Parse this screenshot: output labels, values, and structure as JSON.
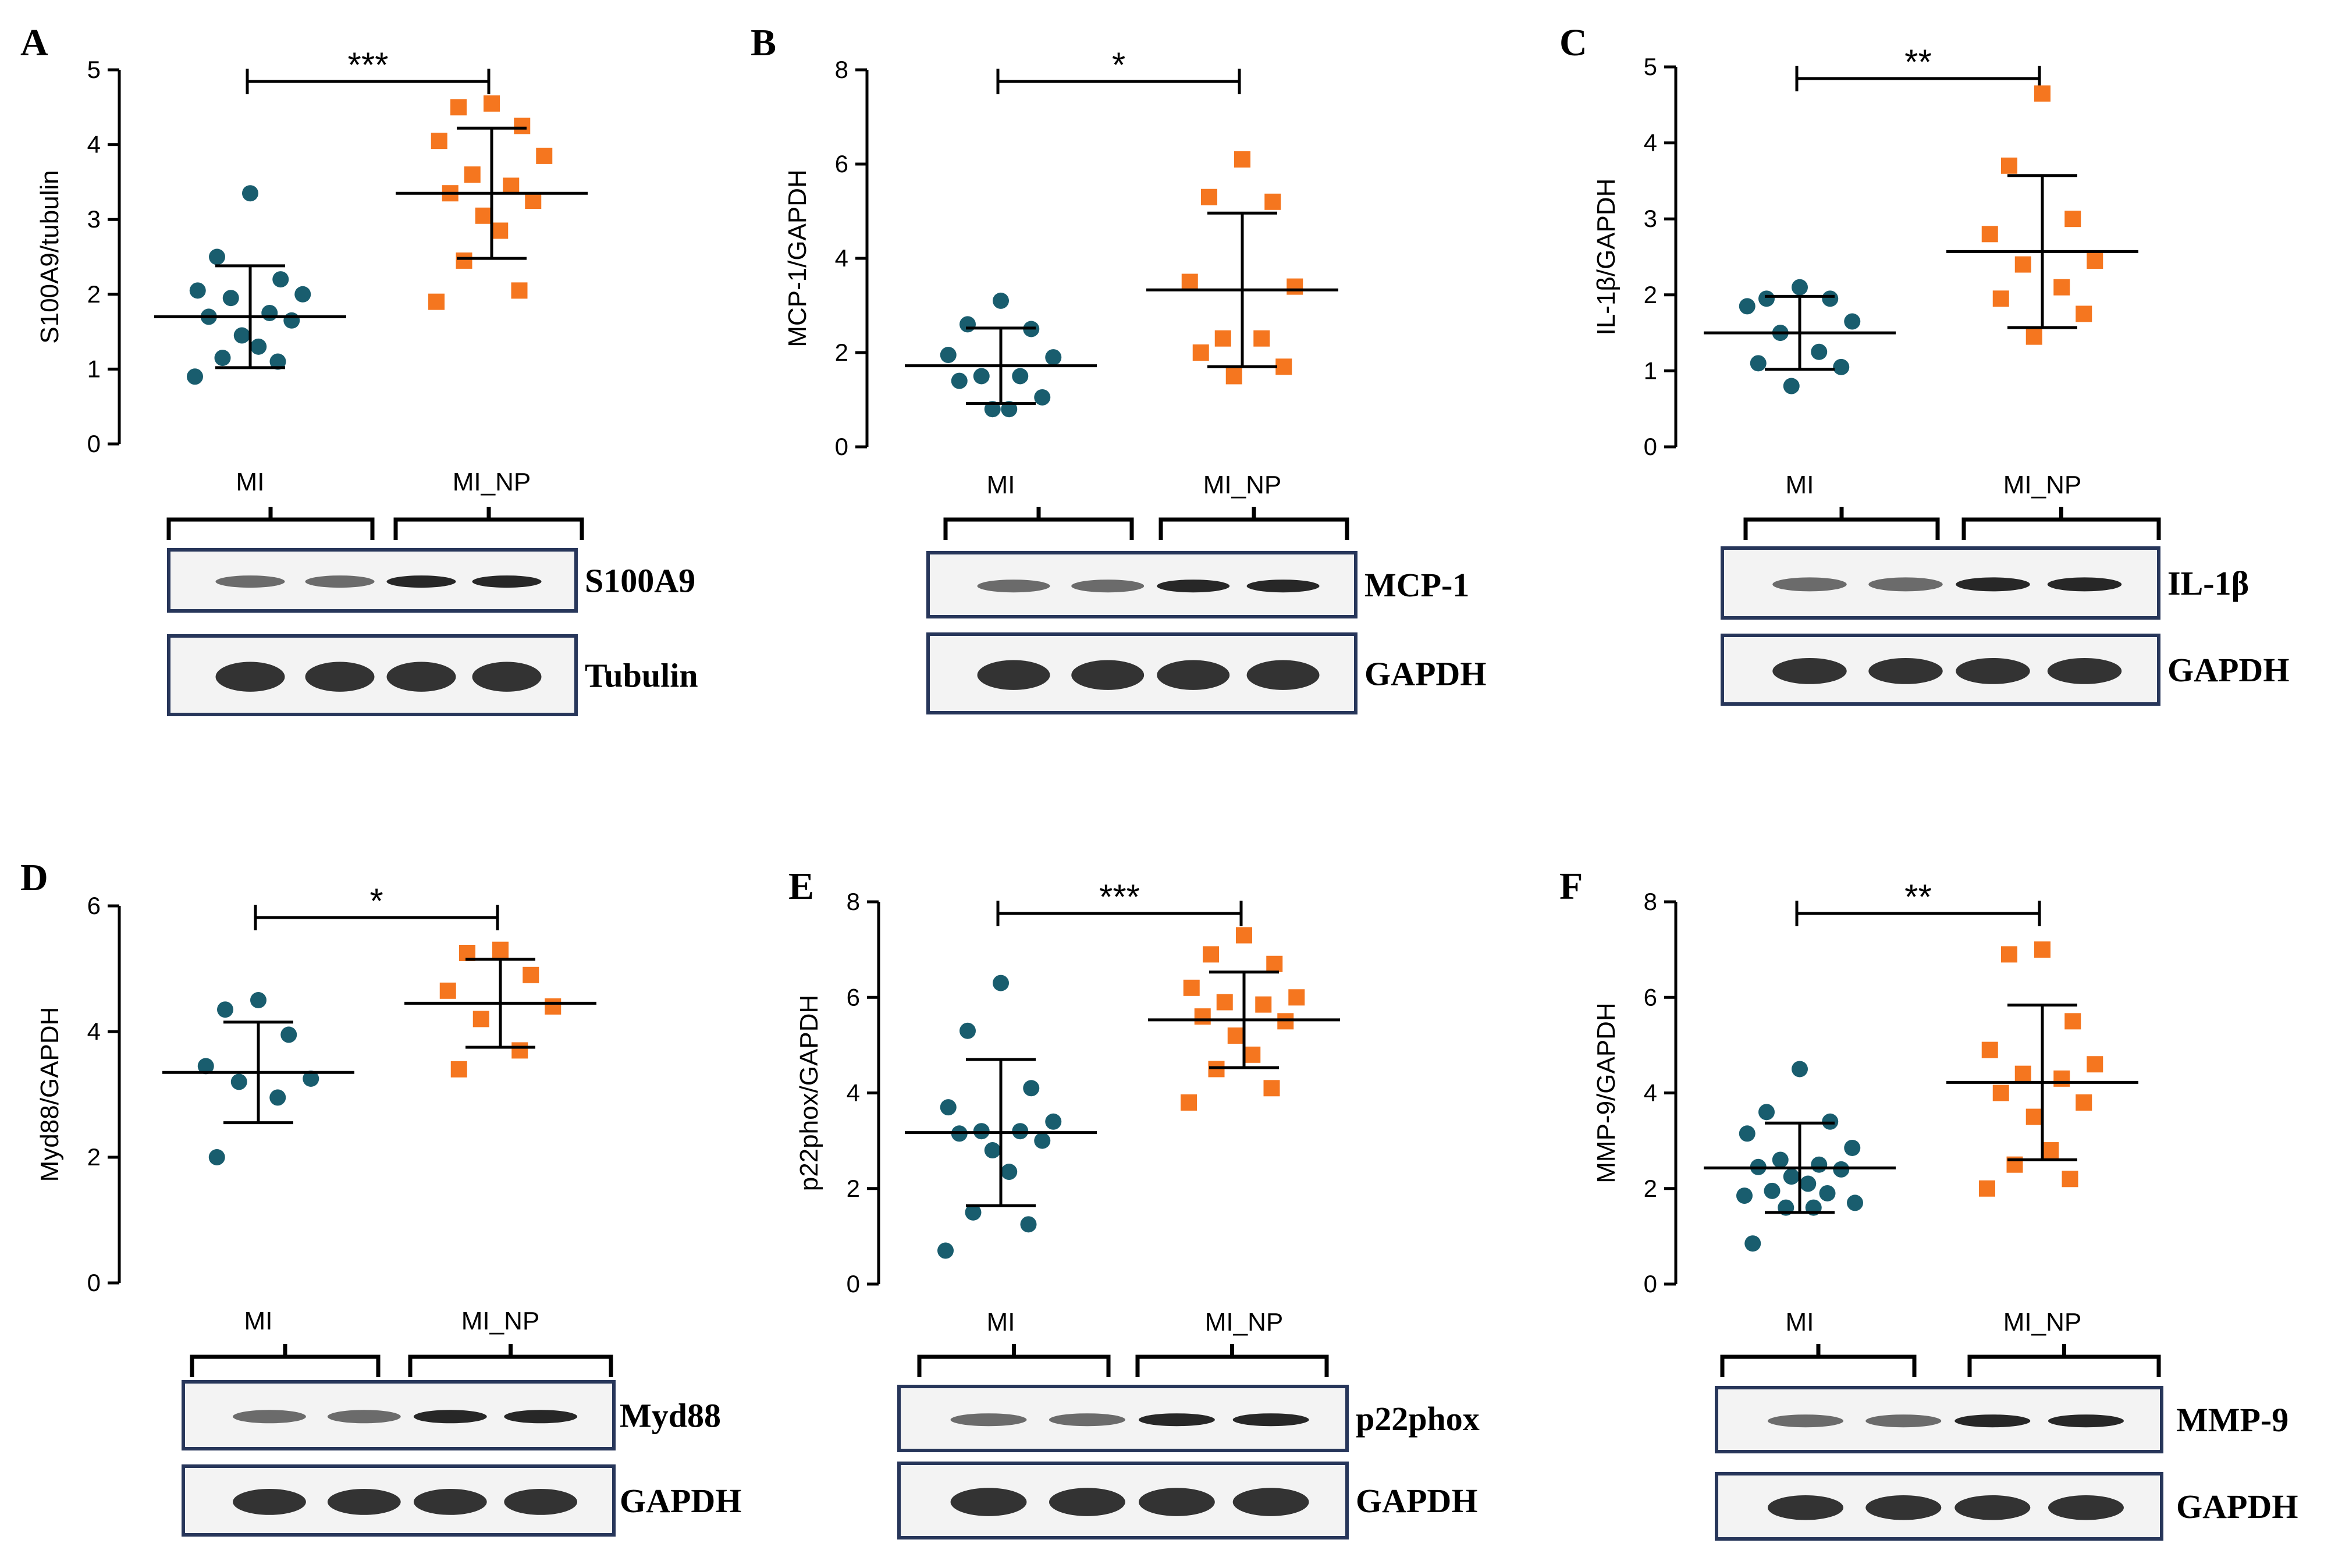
{
  "colors": {
    "mi": "#195d6e",
    "mi_np": "#f5761f",
    "axis": "#000000",
    "blot_frame": "#27365a"
  },
  "chart_data": [
    {
      "type": "scatter",
      "panel_label": "A",
      "ylabel": "S100A9/tubulin",
      "ylim": [
        0,
        5
      ],
      "yticks": [
        "0",
        "1",
        "2",
        "3",
        "4",
        "5"
      ],
      "categories": [
        "MI",
        "MI_NP"
      ],
      "significance": "***",
      "series": [
        {
          "name": "MI",
          "marker": "circle",
          "values": [
            3.35,
            2.5,
            2.2,
            2.05,
            2.0,
            1.95,
            1.75,
            1.7,
            1.65,
            1.45,
            1.3,
            1.15,
            1.1,
            0.9
          ],
          "mean": 1.7,
          "sd_low": 1.02,
          "sd_high": 2.38
        },
        {
          "name": "MI_NP",
          "marker": "square",
          "values": [
            4.55,
            4.5,
            4.25,
            4.05,
            3.85,
            3.6,
            3.45,
            3.35,
            3.25,
            3.05,
            2.85,
            2.45,
            2.05,
            1.9
          ],
          "mean": 3.35,
          "sd_low": 2.48,
          "sd_high": 4.22
        }
      ],
      "blot": {
        "target_label": "S100A9",
        "control_label": "Tubulin"
      }
    },
    {
      "type": "scatter",
      "panel_label": "B",
      "ylabel": "MCP-1/GAPDH",
      "ylim": [
        0,
        8
      ],
      "yticks": [
        "0",
        "2",
        "4",
        "6",
        "8"
      ],
      "categories": [
        "MI",
        "MI_NP"
      ],
      "significance": "*",
      "series": [
        {
          "name": "MI",
          "marker": "circle",
          "values": [
            3.1,
            2.6,
            2.5,
            1.95,
            1.9,
            1.5,
            1.5,
            1.4,
            1.05,
            0.8,
            0.8
          ],
          "mean": 1.72,
          "sd_low": 0.92,
          "sd_high": 2.52
        },
        {
          "name": "MI_NP",
          "marker": "square",
          "values": [
            6.1,
            5.3,
            5.2,
            3.5,
            3.4,
            2.3,
            2.3,
            2.0,
            1.7,
            1.5
          ],
          "mean": 3.33,
          "sd_low": 1.7,
          "sd_high": 4.96
        }
      ],
      "blot": {
        "target_label": "MCP-1",
        "control_label": "GAPDH"
      }
    },
    {
      "type": "scatter",
      "panel_label": "C",
      "ylabel": "IL-1β/GAPDH",
      "ylim": [
        0,
        5
      ],
      "yticks": [
        "0",
        "1",
        "2",
        "3",
        "4",
        "5"
      ],
      "categories": [
        "MI",
        "MI_NP"
      ],
      "significance": "**",
      "series": [
        {
          "name": "MI",
          "marker": "circle",
          "values": [
            2.1,
            1.95,
            1.95,
            1.85,
            1.65,
            1.5,
            1.25,
            1.1,
            1.05,
            0.8
          ],
          "mean": 1.5,
          "sd_low": 1.02,
          "sd_high": 1.98
        },
        {
          "name": "MI_NP",
          "marker": "square",
          "values": [
            4.65,
            3.7,
            3.0,
            2.8,
            2.45,
            2.4,
            2.1,
            1.95,
            1.75,
            1.45
          ],
          "mean": 2.57,
          "sd_low": 1.57,
          "sd_high": 3.57
        }
      ],
      "blot": {
        "target_label": "IL-1β",
        "control_label": "GAPDH"
      }
    },
    {
      "type": "scatter",
      "panel_label": "D",
      "ylabel": "Myd88/GAPDH",
      "ylim": [
        0,
        6
      ],
      "yticks": [
        "0",
        "2",
        "4",
        "6"
      ],
      "categories": [
        "MI",
        "MI_NP"
      ],
      "significance": "*",
      "series": [
        {
          "name": "MI",
          "marker": "circle",
          "values": [
            4.5,
            4.35,
            3.95,
            3.45,
            3.25,
            3.2,
            2.95,
            2.0
          ],
          "mean": 3.35,
          "sd_low": 2.55,
          "sd_high": 4.15
        },
        {
          "name": "MI_NP",
          "marker": "square",
          "values": [
            5.3,
            5.25,
            4.9,
            4.65,
            4.4,
            4.2,
            3.7,
            3.4
          ],
          "mean": 4.45,
          "sd_low": 3.75,
          "sd_high": 5.15
        }
      ],
      "blot": {
        "target_label": "Myd88",
        "control_label": "GAPDH"
      }
    },
    {
      "type": "scatter",
      "panel_label": "E",
      "ylabel": "p22phox/GAPDH",
      "ylim": [
        0,
        8
      ],
      "yticks": [
        "0",
        "2",
        "4",
        "6",
        "8"
      ],
      "categories": [
        "MI",
        "MI_NP"
      ],
      "significance": "***",
      "series": [
        {
          "name": "MI",
          "marker": "circle",
          "values": [
            6.3,
            5.3,
            4.1,
            3.7,
            3.4,
            3.2,
            3.2,
            3.15,
            3.0,
            2.8,
            2.35,
            1.5,
            1.25,
            0.7
          ],
          "mean": 3.17,
          "sd_low": 1.64,
          "sd_high": 4.7
        },
        {
          "name": "MI_NP",
          "marker": "square",
          "values": [
            7.3,
            6.9,
            6.7,
            6.2,
            6.0,
            5.9,
            5.85,
            5.6,
            5.5,
            5.2,
            4.8,
            4.5,
            4.1,
            3.8
          ],
          "mean": 5.53,
          "sd_low": 4.53,
          "sd_high": 6.53
        }
      ],
      "blot": {
        "target_label": "p22phox",
        "control_label": "GAPDH"
      }
    },
    {
      "type": "scatter",
      "panel_label": "F",
      "ylabel": "MMP-9/GAPDH",
      "ylim": [
        0,
        8
      ],
      "yticks": [
        "0",
        "2",
        "4",
        "6",
        "8"
      ],
      "categories": [
        "MI",
        "MI_NP"
      ],
      "significance": "**",
      "series": [
        {
          "name": "MI",
          "marker": "circle",
          "values": [
            4.5,
            3.6,
            3.4,
            3.15,
            2.85,
            2.6,
            2.5,
            2.45,
            2.4,
            2.25,
            2.1,
            1.95,
            1.9,
            1.85,
            1.7,
            1.6,
            1.6,
            0.85
          ],
          "mean": 2.43,
          "sd_low": 1.5,
          "sd_high": 3.37
        },
        {
          "name": "MI_NP",
          "marker": "square",
          "values": [
            7.0,
            6.9,
            5.5,
            4.9,
            4.6,
            4.4,
            4.3,
            4.0,
            3.8,
            3.5,
            2.8,
            2.5,
            2.2,
            2.0
          ],
          "mean": 4.22,
          "sd_low": 2.6,
          "sd_high": 5.84
        }
      ],
      "blot": {
        "target_label": "MMP-9",
        "control_label": "GAPDH"
      }
    }
  ]
}
